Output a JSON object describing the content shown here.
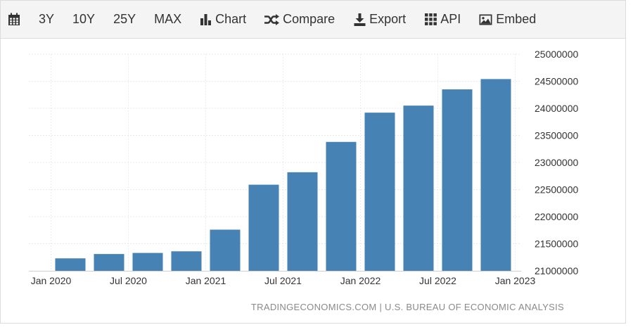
{
  "toolbar": {
    "items": [
      {
        "label": "",
        "icon": "calendar-icon"
      },
      {
        "label": "3Y"
      },
      {
        "label": "10Y"
      },
      {
        "label": "25Y"
      },
      {
        "label": "MAX"
      },
      {
        "label": "Chart",
        "icon": "bar-chart-icon"
      },
      {
        "label": "Compare",
        "icon": "shuffle-icon"
      },
      {
        "label": "Export",
        "icon": "download-icon"
      },
      {
        "label": "API",
        "icon": "grid-icon"
      },
      {
        "label": "Embed",
        "icon": "image-icon"
      }
    ]
  },
  "source_text": "TRADINGECONOMICS.COM | U.S. BUREAU OF ECONOMIC ANALYSIS",
  "chart_data": {
    "type": "bar",
    "title": "",
    "xlabel": "",
    "ylabel": "",
    "grid": true,
    "y_axis_position": "right",
    "color": "#4682b4",
    "ylim": [
      21000000,
      25000000
    ],
    "y_ticks": [
      21000000,
      21500000,
      22000000,
      22500000,
      23000000,
      23500000,
      24000000,
      24500000,
      25000000
    ],
    "x_tick_labels": [
      "Jan 2020",
      "Jul 2020",
      "Jan 2021",
      "Jul 2021",
      "Jan 2022",
      "Jul 2022",
      "Jan 2023"
    ],
    "categories": [
      "2020-Q1",
      "2020-Q2",
      "2020-Q3",
      "2020-Q4",
      "2021-Q1",
      "2021-Q2",
      "2021-Q3",
      "2021-Q4",
      "2022-Q1",
      "2022-Q2",
      "2022-Q3",
      "2022-Q4"
    ],
    "values": [
      21230000,
      21310000,
      21330000,
      21360000,
      21760000,
      22590000,
      22820000,
      23380000,
      23920000,
      24050000,
      24350000,
      24540000
    ]
  }
}
